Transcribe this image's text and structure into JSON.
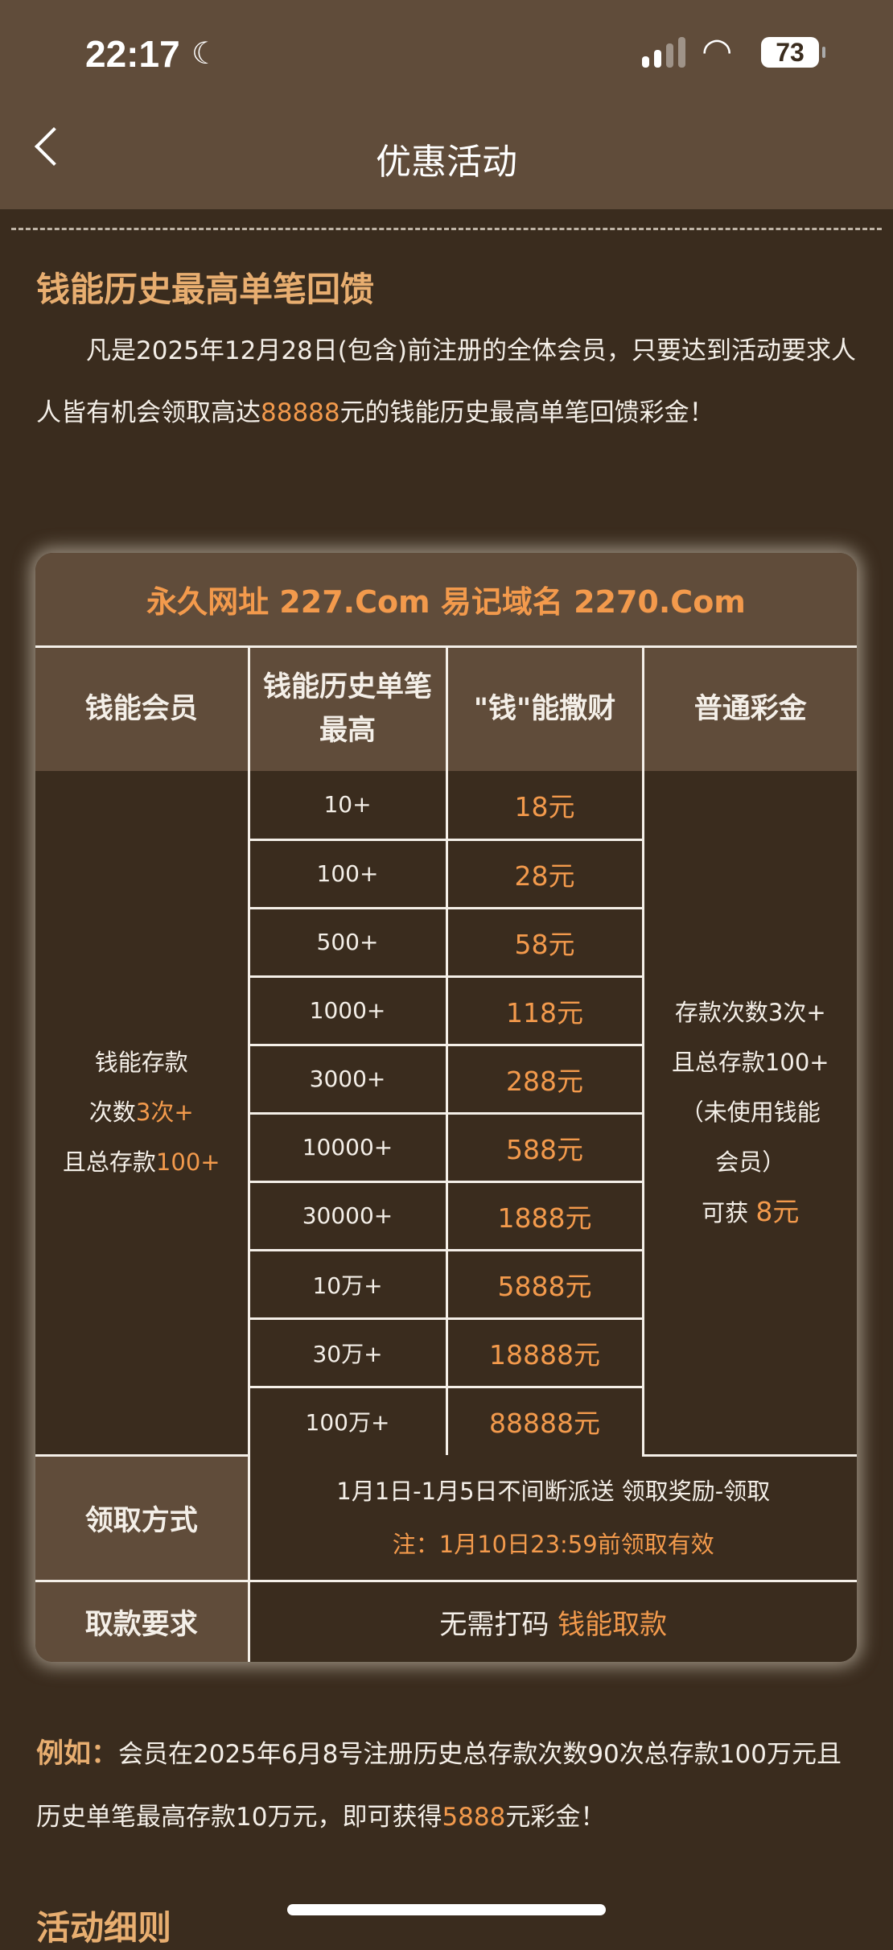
{
  "status_bar": {
    "time": "22:17",
    "battery": "73",
    "icons": [
      "moon-icon",
      "signal-icon",
      "wifi-icon",
      "battery-icon"
    ]
  },
  "nav": {
    "title": "优惠活动",
    "back_icon": "chevron-left-icon"
  },
  "section": {
    "title": "钱能历史最高单笔回馈",
    "intro_a": "凡是2025年12月28日(包含)前注册的全体会员，只要达到活动要求人人皆有机会领取高达",
    "intro_amount": "88888",
    "intro_b": "元的钱能历史最高单笔回馈彩金！"
  },
  "table": {
    "banner": "永久网址 227.Com 易记域名 2270.Com",
    "headers": [
      "钱能会员",
      "钱能历史单笔最高",
      "\"钱\"能撒财",
      "普通彩金"
    ],
    "member_req": {
      "line1": "钱能存款",
      "line2a": "次数",
      "line2b": "3次+",
      "line3a": "且总存款",
      "line3b": "100+"
    },
    "rows": [
      {
        "t": "10+",
        "a": "18元"
      },
      {
        "t": "100+",
        "a": "28元"
      },
      {
        "t": "500+",
        "a": "58元"
      },
      {
        "t": "1000+",
        "a": "118元"
      },
      {
        "t": "3000+",
        "a": "288元"
      },
      {
        "t": "10000+",
        "a": "588元"
      },
      {
        "t": "30000+",
        "a": "1888元"
      },
      {
        "t": "10万+",
        "a": "5888元"
      },
      {
        "t": "30万+",
        "a": "18888元"
      },
      {
        "t": "100万+",
        "a": "88888元"
      }
    ],
    "normal": {
      "l1": "存款次数3次+",
      "l2": "且总存款100+",
      "l3": "（未使用钱能",
      "l4": "会员）",
      "l5a": "可获 ",
      "l5b": "8元"
    },
    "claim_label": "领取方式",
    "claim_text": "1月1日-1月5日不间断派送 领取奖励-领取",
    "claim_note": "注：1月10日23:59前领取有效",
    "withdraw_label": "取款要求",
    "withdraw_a": "无需打码 ",
    "withdraw_b": "钱能取款"
  },
  "example": {
    "label": "例如：",
    "text_a": "会员在2025年6月8号注册历史总存款次数90次总存款100万元且历史单笔最高存款10万元，即可获得",
    "amount": "5888",
    "text_b": "元彩金！"
  },
  "next_section": {
    "title": "活动细则"
  },
  "colors": {
    "header_bg": "#604c3a",
    "page_bg": "#3a2c1e",
    "accent": "#f39a4c",
    "title": "#e8ae70"
  }
}
